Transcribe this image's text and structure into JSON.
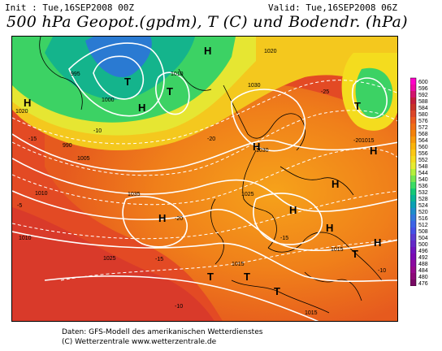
{
  "header": {
    "init": "Init : Tue,16SEP2008 00Z",
    "valid": "Valid: Tue,16SEP2008 06Z",
    "title": "500 hPa Geopot.(gpdm), T (C) und Bodendr. (hPa)"
  },
  "map": {
    "high_label": "H",
    "low_label": "T",
    "pressure_labels": [
      "1020",
      "1015",
      "1010",
      "1005",
      "1000",
      "995",
      "990",
      "1025",
      "1030",
      "1035"
    ],
    "temp_labels": [
      "-5",
      "-10",
      "-15",
      "-20",
      "-25"
    ]
  },
  "legend": {
    "values": [
      "600",
      "596",
      "592",
      "588",
      "584",
      "580",
      "576",
      "572",
      "568",
      "564",
      "560",
      "556",
      "552",
      "548",
      "544",
      "540",
      "536",
      "532",
      "528",
      "524",
      "520",
      "516",
      "512",
      "508",
      "504",
      "500",
      "496",
      "492",
      "488",
      "484",
      "480",
      "476"
    ],
    "colors": [
      "#ff00c8",
      "#ee0aa6",
      "#d2146e",
      "#c41e3a",
      "#c83228",
      "#dc4628",
      "#ec5a1e",
      "#f06e14",
      "#f4820a",
      "#f89a0a",
      "#fab40a",
      "#fcc814",
      "#f5dc1e",
      "#e6ec32",
      "#b4f03c",
      "#78e650",
      "#3cdc64",
      "#14c878",
      "#0ab496",
      "#0aa0b4",
      "#1e8ccc",
      "#3278dc",
      "#3c64e6",
      "#4650e6",
      "#5a3cd2",
      "#6428c8",
      "#7014be",
      "#7a0ab4",
      "#8c0aa0",
      "#960a8c",
      "#8c0a78",
      "#780a64"
    ]
  },
  "footer": {
    "line1": "Daten: GFS-Modell des amerikanischen Wetterdienstes",
    "line2": "(C) Wetterzentrale  www.wetterzentrale.de"
  }
}
